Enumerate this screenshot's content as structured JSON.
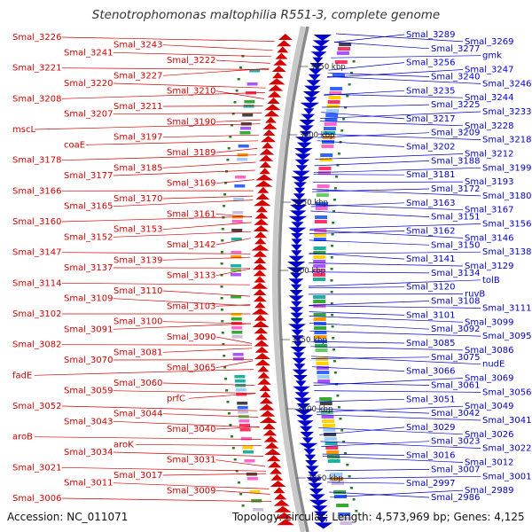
{
  "title": "Stenotrophomonas maltophilia R551-3, complete genome",
  "accession_text": "Accession: NC_011071",
  "topology_text": "Topology: circular; Length: 4,573,969 bp; Genes: 4,125",
  "colors": {
    "forward": "#d40000",
    "reverse": "#0000cc",
    "backbone": "#8a8a8a",
    "marker": "#2a7a2a"
  },
  "scale_ticks": [
    {
      "label": "3650 kbp"
    },
    {
      "label": "3600 kbp"
    },
    {
      "label": "3550 kbp"
    },
    {
      "label": "3500 kbp"
    },
    {
      "label": "3450 kbp"
    },
    {
      "label": "3400 kbp"
    },
    {
      "label": "3350 kbp"
    }
  ],
  "left_labels": [
    "Smal_3226",
    "Smal_3243",
    "Smal_3241",
    "Smal_3222",
    "Smal_3221",
    "Smal_3227",
    "Smal_3220",
    "Smal_3210",
    "Smal_3208",
    "Smal_3211",
    "Smal_3207",
    "Smal_3190",
    "mscL",
    "Smal_3197",
    "coaE",
    "Smal_3189",
    "Smal_3178",
    "Smal_3185",
    "Smal_3177",
    "Smal_3169",
    "Smal_3166",
    "Smal_3170",
    "Smal_3165",
    "Smal_3161",
    "Smal_3160",
    "Smal_3153",
    "Smal_3152",
    "Smal_3142",
    "Smal_3147",
    "Smal_3139",
    "Smal_3137",
    "Smal_3133",
    "Smal_3114",
    "Smal_3110",
    "Smal_3109",
    "Smal_3103",
    "Smal_3102",
    "Smal_3100",
    "Smal_3091",
    "Smal_3090",
    "Smal_3082",
    "Smal_3081",
    "Smal_3070",
    "Smal_3065",
    "fadE",
    "Smal_3060",
    "Smal_3059",
    "prfC",
    "Smal_3052",
    "Smal_3044",
    "Smal_3043",
    "Smal_3040",
    "aroB",
    "aroK",
    "Smal_3034",
    "Smal_3031",
    "Smal_3021",
    "Smal_3017",
    "Smal_3011",
    "Smal_3009",
    "Smal_3006"
  ],
  "right_labels": [
    "Smal_3289",
    "Smal_3269",
    "Smal_3277",
    "gmk",
    "Smal_3256",
    "Smal_3247",
    "Smal_3240",
    "Smal_3246",
    "Smal_3235",
    "Smal_3244",
    "Smal_3225",
    "Smal_3233",
    "Smal_3217",
    "Smal_3228",
    "Smal_3209",
    "Smal_3218",
    "Smal_3202",
    "Smal_3212",
    "Smal_3188",
    "Smal_3199",
    "Smal_3181",
    "Smal_3193",
    "Smal_3172",
    "Smal_3180",
    "Smal_3163",
    "Smal_3167",
    "Smal_3151",
    "Smal_3156",
    "Smal_3162",
    "Smal_3146",
    "Smal_3150",
    "Smal_3138",
    "Smal_3141",
    "Smal_3129",
    "Smal_3134",
    "tolB",
    "Smal_3120",
    "ruvB",
    "Smal_3108",
    "Smal_3111",
    "Smal_3101",
    "Smal_3099",
    "Smal_3092",
    "Smal_3095",
    "Smal_3085",
    "Smal_3086",
    "Smal_3075",
    "nudE",
    "Smal_3066",
    "Smal_3069",
    "Smal_3061",
    "Smal_3056",
    "Smal_3051",
    "Smal_3049",
    "Smal_3042",
    "Smal_3041",
    "Smal_3029",
    "Smal_3026",
    "Smal_3023",
    "Smal_3022",
    "Smal_3016",
    "Smal_3012",
    "Smal_3007",
    "Smal_3001",
    "Smal_2997",
    "Smal_2989",
    "Smal_2986"
  ]
}
